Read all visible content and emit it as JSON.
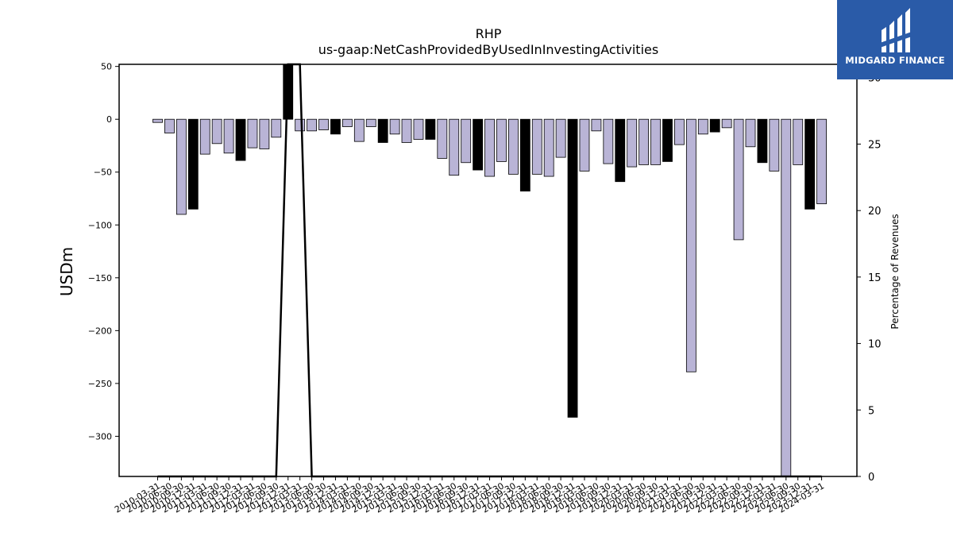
{
  "header": {
    "ticker": "RHP",
    "metric": "us-gaap:NetCashProvidedByUsedInInvestingActivities"
  },
  "logo": {
    "text": "MIDGARD FINANCE",
    "color": "#2a5ba8"
  },
  "colors": {
    "regular_bar": "#b9b4d6",
    "highlight_bar": "#000000",
    "line": "#000000"
  },
  "chart_data": {
    "type": "bar",
    "title": "RHP",
    "subtitle": "us-gaap:NetCashProvidedByUsedInInvestingActivities",
    "ylabel": "USDm",
    "y2label": "Percentage of Revenues",
    "ylim": [
      -338,
      52
    ],
    "y2lim": [
      0,
      31
    ],
    "yticks": [
      50,
      0,
      -50,
      -100,
      -150,
      -200,
      -250,
      -300
    ],
    "y2ticks": [
      30,
      25,
      20,
      15,
      10,
      5,
      0
    ],
    "categories": [
      "2010-03-31",
      "2010-06-30",
      "2010-09-30",
      "2010-12-31",
      "2011-03-31",
      "2011-06-30",
      "2011-09-30",
      "2011-12-31",
      "2012-03-31",
      "2012-06-30",
      "2012-09-30",
      "2012-12-31",
      "2013-03-31",
      "2013-06-30",
      "2013-09-30",
      "2013-12-31",
      "2014-03-31",
      "2014-06-30",
      "2014-09-30",
      "2014-12-31",
      "2015-03-31",
      "2015-06-30",
      "2015-09-30",
      "2015-12-31",
      "2016-03-31",
      "2016-06-30",
      "2016-09-30",
      "2016-12-31",
      "2017-03-31",
      "2017-06-30",
      "2017-09-30",
      "2017-12-31",
      "2018-03-31",
      "2018-06-30",
      "2018-09-30",
      "2018-12-31",
      "2019-03-31",
      "2019-06-30",
      "2019-09-30",
      "2019-12-31",
      "2020-03-31",
      "2020-06-30",
      "2020-09-30",
      "2020-12-31",
      "2021-03-31",
      "2021-06-30",
      "2021-09-30",
      "2021-12-31",
      "2022-03-31",
      "2022-06-30",
      "2022-09-30",
      "2022-12-31",
      "2023-03-31",
      "2023-06-30",
      "2023-09-30",
      "2023-12-31",
      "2024-03-31"
    ],
    "values": [
      -3,
      -13,
      -90,
      -85,
      -33,
      -23,
      -32,
      -39,
      -27,
      -28,
      -17,
      52,
      -11,
      -11,
      -10,
      -14,
      -7,
      -21,
      -7,
      -22,
      -14,
      -22,
      -19,
      -19,
      -37,
      -53,
      -41,
      -48,
      -54,
      -40,
      -52,
      -68,
      -52,
      -54,
      -36,
      -282,
      -49,
      -11,
      -42,
      -59,
      -45,
      -43,
      -43,
      -40,
      -24,
      -239,
      -14,
      -12,
      -8,
      -114,
      -26,
      -41,
      -49,
      -338,
      -43,
      -85,
      -80
    ],
    "highlight": [
      false,
      false,
      false,
      true,
      false,
      false,
      false,
      true,
      false,
      false,
      false,
      true,
      false,
      false,
      false,
      true,
      false,
      false,
      false,
      true,
      false,
      false,
      false,
      true,
      false,
      false,
      false,
      true,
      false,
      false,
      false,
      true,
      false,
      false,
      false,
      true,
      false,
      false,
      false,
      true,
      false,
      false,
      false,
      true,
      false,
      false,
      false,
      true,
      false,
      false,
      false,
      true,
      false,
      false,
      false,
      true,
      false
    ],
    "pct_of_revenues_series": [
      0,
      0,
      0,
      0,
      0,
      0,
      0,
      0,
      0,
      0,
      0,
      31,
      31,
      0,
      0,
      0,
      0,
      0,
      0,
      0,
      0,
      0,
      0,
      0,
      0,
      0,
      0,
      0,
      0,
      0,
      0,
      0,
      0,
      0,
      0,
      0,
      0,
      0,
      0,
      0,
      0,
      0,
      0,
      0,
      0,
      0,
      0,
      0,
      0,
      0,
      0,
      0,
      0,
      0,
      0,
      0,
      0
    ]
  }
}
